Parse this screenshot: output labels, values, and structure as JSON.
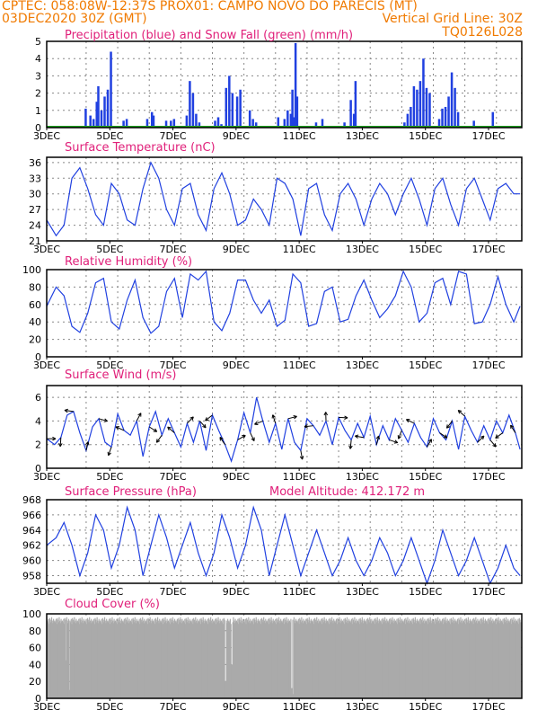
{
  "header": {
    "line1_left": "CPTEC:   058:08W-12:37S   PROX01: CAMPO NOVO DO PARECIS (MT)",
    "line2_left": "03DEC2020 30Z (GMT)",
    "line2_right": "Vertical Grid Line: 30Z",
    "line3_right": "TQ0126L028"
  },
  "colors": {
    "header": "#f07a00",
    "title": "#e0207a",
    "line": "#2040e0",
    "snow": "#1fa01f",
    "cloud": "#aaaaaa",
    "grid": "#888888"
  },
  "xaxis": {
    "days": [
      3,
      17
    ],
    "labels": [
      "3DEC",
      "5DEC",
      "7DEC",
      "9DEC",
      "11DEC",
      "13DEC",
      "15DEC",
      "17DEC"
    ],
    "label_days": [
      3,
      5,
      7,
      9,
      11,
      13,
      15,
      17
    ]
  },
  "chart_data": [
    {
      "type": "bar",
      "title": "Precipitation (blue) and Snow Fall (green) (mm/h)",
      "ylim": [
        0,
        5
      ],
      "yticks": [
        0,
        1,
        2,
        3,
        4,
        5
      ],
      "series": [
        {
          "name": "Precipitation",
          "color": "#2040e0",
          "x": [
            4.2,
            4.35,
            4.45,
            4.55,
            4.6,
            4.7,
            4.8,
            4.9,
            5.0,
            5.4,
            5.5,
            6.15,
            6.3,
            6.35,
            6.75,
            6.9,
            7.0,
            7.4,
            7.5,
            7.6,
            7.7,
            7.8,
            8.3,
            8.4,
            8.5,
            8.65,
            8.75,
            8.85,
            9.0,
            9.1,
            9.4,
            9.5,
            9.6,
            10.3,
            10.5,
            10.6,
            10.7,
            10.75,
            10.8,
            10.85,
            10.9,
            11.5,
            11.7,
            12.4,
            12.6,
            12.7,
            12.75,
            14.3,
            14.4,
            14.5,
            14.6,
            14.7,
            14.8,
            14.9,
            15.0,
            15.1,
            15.4,
            15.5,
            15.6,
            15.7,
            15.8,
            15.9,
            16.0,
            16.5,
            17.1
          ],
          "values": [
            1.1,
            0.7,
            0.5,
            1.5,
            2.4,
            1.0,
            1.8,
            2.2,
            4.4,
            0.4,
            0.5,
            0.5,
            0.9,
            0.7,
            0.4,
            0.4,
            0.5,
            0.7,
            2.7,
            2.0,
            0.8,
            0.3,
            0.4,
            0.6,
            0.2,
            2.3,
            3.0,
            2.0,
            1.8,
            2.2,
            1.0,
            0.5,
            0.3,
            0.6,
            0.5,
            1.0,
            0.8,
            2.2,
            0.6,
            4.9,
            1.8,
            0.3,
            0.5,
            0.3,
            1.6,
            0.8,
            2.7,
            0.3,
            0.8,
            1.2,
            2.4,
            2.2,
            2.7,
            4.0,
            2.3,
            2.0,
            0.5,
            1.1,
            1.2,
            1.8,
            3.2,
            2.3,
            0.9,
            0.4,
            0.9
          ]
        },
        {
          "name": "Snow Fall",
          "color": "#1fa01f",
          "x": [
            3,
            17
          ],
          "values": [
            0,
            0
          ]
        }
      ]
    },
    {
      "type": "line",
      "title": "Surface Temperature (nC)",
      "ylim": [
        21,
        37
      ],
      "yticks": [
        21,
        24,
        27,
        30,
        33,
        36
      ],
      "x": [
        3,
        3.3,
        3.55,
        3.8,
        4.05,
        4.3,
        4.55,
        4.8,
        5.05,
        5.3,
        5.55,
        5.8,
        6.05,
        6.3,
        6.55,
        6.8,
        7.05,
        7.3,
        7.55,
        7.8,
        8.05,
        8.3,
        8.55,
        8.8,
        9.05,
        9.3,
        9.55,
        9.8,
        10.05,
        10.3,
        10.55,
        10.8,
        11.05,
        11.3,
        11.55,
        11.8,
        12.05,
        12.3,
        12.55,
        12.8,
        13.05,
        13.3,
        13.55,
        13.8,
        14.05,
        14.3,
        14.55,
        14.8,
        15.05,
        15.3,
        15.55,
        15.8,
        16.05,
        16.3,
        16.55,
        16.8,
        17.05,
        17.3,
        17.55,
        17.8,
        18
      ],
      "values": [
        25,
        22,
        24,
        33,
        35,
        31,
        26,
        24,
        32,
        30,
        25,
        24,
        31,
        36,
        33,
        27,
        24,
        31,
        32,
        26,
        23,
        31,
        34,
        30,
        24,
        25,
        29,
        27,
        24,
        33,
        32,
        29,
        22,
        31,
        32,
        26,
        23,
        30,
        32,
        29,
        24,
        29,
        32,
        30,
        26,
        30,
        33,
        29,
        24,
        31,
        33,
        28,
        24,
        31,
        33,
        29,
        25,
        31,
        32,
        30,
        30
      ]
    },
    {
      "type": "line",
      "title": "Relative Humidity (%)",
      "ylim": [
        0,
        100
      ],
      "yticks": [
        0,
        20,
        40,
        60,
        80,
        100
      ],
      "x": [
        3,
        3.3,
        3.55,
        3.8,
        4.05,
        4.3,
        4.55,
        4.8,
        5.05,
        5.3,
        5.55,
        5.8,
        6.05,
        6.3,
        6.55,
        6.8,
        7.05,
        7.3,
        7.55,
        7.8,
        8.05,
        8.3,
        8.55,
        8.8,
        9.05,
        9.3,
        9.55,
        9.8,
        10.05,
        10.3,
        10.55,
        10.8,
        11.05,
        11.3,
        11.55,
        11.8,
        12.05,
        12.3,
        12.55,
        12.8,
        13.05,
        13.3,
        13.55,
        13.8,
        14.05,
        14.3,
        14.55,
        14.8,
        15.05,
        15.3,
        15.55,
        15.8,
        16.05,
        16.3,
        16.55,
        16.8,
        17.05,
        17.3,
        17.55,
        17.8,
        18
      ],
      "values": [
        58,
        80,
        70,
        35,
        28,
        50,
        85,
        90,
        40,
        32,
        65,
        88,
        45,
        27,
        35,
        75,
        90,
        45,
        95,
        88,
        98,
        40,
        30,
        50,
        88,
        88,
        65,
        50,
        65,
        35,
        42,
        95,
        85,
        35,
        38,
        75,
        80,
        40,
        43,
        70,
        88,
        65,
        45,
        55,
        70,
        98,
        80,
        40,
        50,
        85,
        90,
        60,
        98,
        95,
        38,
        40,
        60,
        92,
        60,
        40,
        58
      ]
    },
    {
      "type": "line",
      "title": "Surface Wind (m/s)",
      "ylim": [
        0,
        7
      ],
      "yticks": [
        0,
        2,
        4,
        6
      ],
      "x": [
        3,
        3.25,
        3.45,
        3.65,
        3.85,
        4.05,
        4.25,
        4.45,
        4.65,
        4.85,
        5.05,
        5.25,
        5.45,
        5.65,
        5.85,
        6.05,
        6.25,
        6.45,
        6.65,
        6.85,
        7.05,
        7.25,
        7.45,
        7.65,
        7.85,
        8.05,
        8.25,
        8.45,
        8.65,
        8.85,
        9.05,
        9.25,
        9.45,
        9.65,
        9.85,
        10.05,
        10.25,
        10.45,
        10.65,
        10.85,
        11.05,
        11.25,
        11.45,
        11.65,
        11.85,
        12.05,
        12.25,
        12.45,
        12.65,
        12.85,
        13.05,
        13.25,
        13.45,
        13.65,
        13.85,
        14.05,
        14.25,
        14.45,
        14.65,
        14.85,
        15.05,
        15.25,
        15.45,
        15.65,
        15.85,
        16.05,
        16.25,
        16.45,
        16.65,
        16.85,
        17.05,
        17.25,
        17.45,
        17.65,
        17.85,
        18
      ],
      "values": [
        2.5,
        2.0,
        2.6,
        4.5,
        4.8,
        3.0,
        1.5,
        3.5,
        4.2,
        2.2,
        1.8,
        4.6,
        3.2,
        2.8,
        4.0,
        1.0,
        3.5,
        4.8,
        2.8,
        4.2,
        3.0,
        1.8,
        3.8,
        2.2,
        4.0,
        1.5,
        4.5,
        3.2,
        2.0,
        0.6,
        2.4,
        4.7,
        3.0,
        6.0,
        4.0,
        2.2,
        3.8,
        1.6,
        4.2,
        2.2,
        1.5,
        4.2,
        3.6,
        2.8,
        4.0,
        2.0,
        4.3,
        3.2,
        2.4,
        3.8,
        2.6,
        4.4,
        2.0,
        3.6,
        2.4,
        4.2,
        3.2,
        2.2,
        3.8,
        2.6,
        1.8,
        4.2,
        3.0,
        2.4,
        4.0,
        1.6,
        4.4,
        3.2,
        2.2,
        3.6,
        2.4,
        4.0,
        3.0,
        4.5,
        3.0,
        1.6
      ]
    },
    {
      "type": "line",
      "title": "Surface Pressure (hPa)",
      "annotation": "Model Altitude: 412.172  m",
      "ylim": [
        957,
        968
      ],
      "yticks": [
        958,
        960,
        962,
        964,
        966,
        968
      ],
      "x": [
        3,
        3.3,
        3.55,
        3.8,
        4.05,
        4.3,
        4.55,
        4.8,
        5.05,
        5.3,
        5.55,
        5.8,
        6.05,
        6.3,
        6.55,
        6.8,
        7.05,
        7.3,
        7.55,
        7.8,
        8.05,
        8.3,
        8.55,
        8.8,
        9.05,
        9.3,
        9.55,
        9.8,
        10.05,
        10.3,
        10.55,
        10.8,
        11.05,
        11.3,
        11.55,
        11.8,
        12.05,
        12.3,
        12.55,
        12.8,
        13.05,
        13.3,
        13.55,
        13.8,
        14.05,
        14.3,
        14.55,
        14.8,
        15.05,
        15.3,
        15.55,
        15.8,
        16.05,
        16.3,
        16.55,
        16.8,
        17.05,
        17.3,
        17.55,
        17.8,
        18
      ],
      "values": [
        962,
        963,
        965,
        962,
        958,
        961,
        966,
        964,
        959,
        962,
        967,
        964,
        958,
        962,
        966,
        963,
        959,
        962,
        965,
        961,
        958,
        961,
        966,
        963,
        959,
        962,
        967,
        964,
        958,
        962,
        966,
        962,
        958,
        961,
        964,
        961,
        958,
        960,
        963,
        960,
        958,
        960,
        963,
        961,
        958,
        960,
        963,
        960,
        957,
        960,
        964,
        961,
        958,
        960,
        963,
        960,
        957,
        959,
        962,
        959,
        958
      ]
    },
    {
      "type": "bar",
      "title": "Cloud Cover (%)",
      "ylim": [
        0,
        100
      ],
      "yticks": [
        0,
        20,
        40,
        60,
        80,
        100
      ],
      "baseline_values": [
        92,
        90,
        94,
        88,
        95,
        93,
        90,
        96,
        92,
        89,
        94,
        91
      ],
      "dips_x": [
        3.6,
        3.7,
        8.65,
        8.85,
        10.75,
        10.8
      ],
      "dips_values": [
        45,
        10,
        20,
        40,
        12,
        5
      ]
    }
  ]
}
